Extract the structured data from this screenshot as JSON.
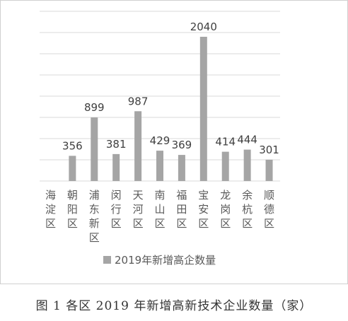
{
  "chart_data": {
    "type": "bar",
    "categories": [
      "海淀区",
      "朝阳区",
      "浦东新区",
      "闵行区",
      "天河区",
      "南山区",
      "福田区",
      "宝安区",
      "龙岗区",
      "余杭区",
      "顺德区"
    ],
    "series": [
      {
        "name": "2019年新增高企数量",
        "color": "#a5a5a5",
        "values": [
          0,
          356,
          899,
          381,
          987,
          429,
          369,
          2040,
          414,
          444,
          301
        ]
      }
    ],
    "data_labels": [
      "",
      "356",
      "899",
      "381",
      "987",
      "429",
      "369",
      "2040",
      "414",
      "444",
      "301"
    ],
    "ylim": [
      0,
      2400
    ],
    "grid": true,
    "legend_position": "bottom"
  },
  "caption": "图 1  各区 2019 年新增高新技术企业数量（家）"
}
